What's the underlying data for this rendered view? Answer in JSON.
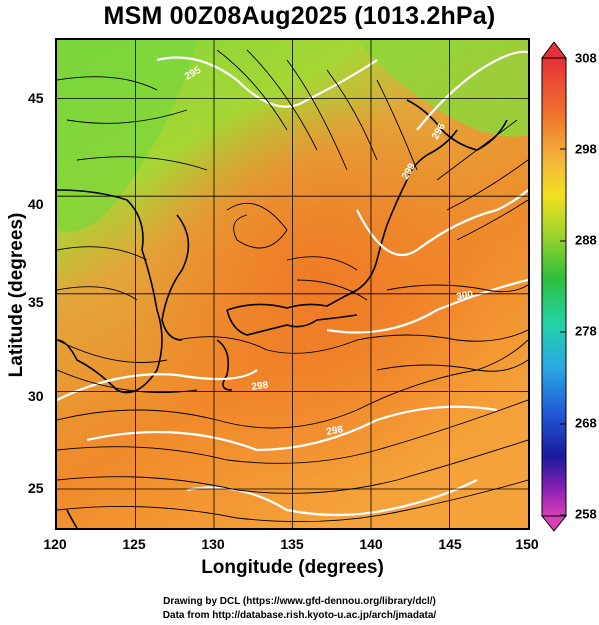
{
  "title": "MSM 00Z08Aug2025 (1013.2hPa)",
  "axes": {
    "xlabel": "Longitude (degrees)",
    "ylabel": "Latitude  (degrees)",
    "xticks": [
      "120",
      "125",
      "130",
      "135",
      "140",
      "145",
      "150"
    ],
    "yticks": [
      "25",
      "30",
      "35",
      "40",
      "45"
    ]
  },
  "colorbar": {
    "ticks": [
      "308",
      "298",
      "288",
      "278",
      "268",
      "258"
    ],
    "colors": [
      "#e53340",
      "#f26b2e",
      "#f6b53c",
      "#f2e11f",
      "#a8d62a",
      "#2fbf3a",
      "#1fd4a9",
      "#2aa8e8",
      "#2156d6",
      "#1a1aa0",
      "#8a1fb8",
      "#d43fb8"
    ]
  },
  "map": {
    "extent_lon": [
      120,
      150
    ],
    "extent_lat": [
      22.5,
      47.5
    ],
    "contour_labels": [
      "298",
      "298",
      "300",
      "299",
      "296",
      "295"
    ]
  },
  "footer": {
    "line1": "Drawing by DCL (https://www.gfd-dennou.org/library/dcl/)",
    "line2": "Data from http://database.rish.kyoto-u.ac.jp/arch/jmadata/"
  }
}
